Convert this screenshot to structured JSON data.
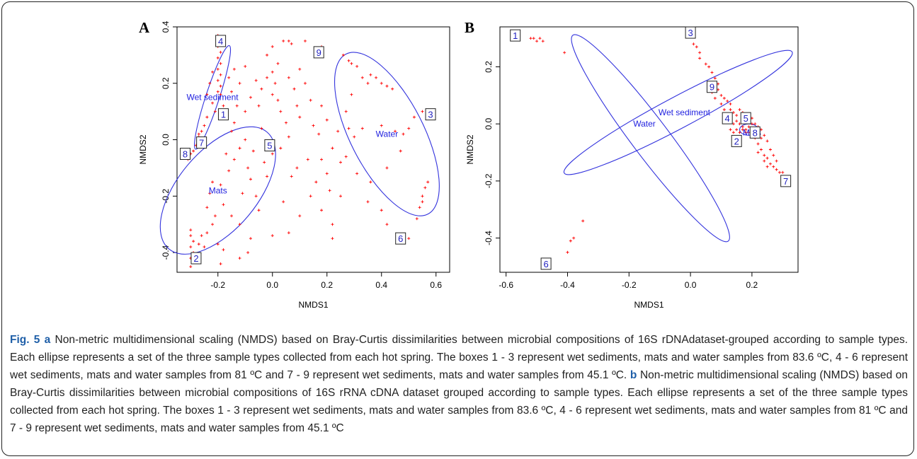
{
  "chart_data": [
    {
      "type": "scatter",
      "panel": "A",
      "xlabel": "NMDS1",
      "ylabel": "NMDS2",
      "xlim": [
        -0.35,
        0.65
      ],
      "ylim": [
        -0.47,
        0.4
      ],
      "xticks": [
        -0.2,
        0.0,
        0.2,
        0.4,
        0.6
      ],
      "xtick_labels": [
        "-0.2",
        "0.0",
        "0.2",
        "0.4",
        "0.6"
      ],
      "yticks": [
        -0.4,
        -0.2,
        0.0,
        0.2,
        0.4
      ],
      "ytick_labels": [
        "-0.4",
        "-0.2",
        "0.0",
        "0.2",
        "0.4"
      ],
      "point_color": "#ff0000",
      "ellipse_color": "#3333dd",
      "points": [
        [
          -0.2,
          0.37
        ],
        [
          -0.19,
          0.36
        ],
        [
          -0.2,
          0.33
        ],
        [
          -0.19,
          0.31
        ],
        [
          -0.2,
          0.29
        ],
        [
          -0.19,
          0.27
        ],
        [
          -0.2,
          0.25
        ],
        [
          -0.19,
          0.23
        ],
        [
          -0.2,
          0.21
        ],
        [
          -0.19,
          0.19
        ],
        [
          -0.2,
          0.17
        ],
        [
          -0.19,
          0.16
        ],
        [
          -0.22,
          0.24
        ],
        [
          -0.23,
          0.2
        ],
        [
          -0.24,
          0.16
        ],
        [
          -0.22,
          0.13
        ],
        [
          -0.21,
          0.1
        ],
        [
          -0.24,
          0.08
        ],
        [
          -0.25,
          0.05
        ],
        [
          -0.26,
          0.03
        ],
        [
          -0.27,
          0.02
        ],
        [
          -0.26,
          0.0
        ],
        [
          -0.28,
          -0.02
        ],
        [
          -0.27,
          0.01
        ],
        [
          -0.3,
          -0.05
        ],
        [
          -0.31,
          -0.07
        ],
        [
          -0.29,
          -0.04
        ],
        [
          -0.3,
          -0.32
        ],
        [
          -0.3,
          -0.34
        ],
        [
          -0.29,
          -0.36
        ],
        [
          -0.3,
          -0.38
        ],
        [
          -0.29,
          -0.4
        ],
        [
          -0.3,
          -0.42
        ],
        [
          -0.3,
          -0.45
        ],
        [
          -0.29,
          -0.43
        ],
        [
          -0.26,
          -0.34
        ],
        [
          -0.24,
          -0.33
        ],
        [
          -0.22,
          -0.3
        ],
        [
          -0.27,
          -0.37
        ],
        [
          -0.25,
          -0.38
        ],
        [
          -0.2,
          -0.37
        ],
        [
          -0.18,
          -0.39
        ],
        [
          -0.19,
          -0.44
        ],
        [
          -0.12,
          -0.42
        ],
        [
          -0.24,
          -0.24
        ],
        [
          -0.21,
          -0.27
        ],
        [
          -0.23,
          -0.19
        ],
        [
          -0.18,
          -0.23
        ],
        [
          -0.22,
          -0.15
        ],
        [
          -0.19,
          -0.16
        ],
        [
          -0.15,
          -0.27
        ],
        [
          -0.12,
          -0.3
        ],
        [
          -0.16,
          -0.11
        ],
        [
          -0.14,
          -0.07
        ],
        [
          -0.17,
          -0.05
        ],
        [
          -0.12,
          -0.03
        ],
        [
          -0.1,
          0.0
        ],
        [
          -0.15,
          0.03
        ],
        [
          -0.09,
          -0.1
        ],
        [
          -0.08,
          -0.14
        ],
        [
          -0.11,
          -0.19
        ],
        [
          -0.06,
          -0.2
        ],
        [
          -0.05,
          -0.25
        ],
        [
          -0.07,
          -0.04
        ],
        [
          -0.03,
          -0.08
        ],
        [
          -0.1,
          0.1
        ],
        [
          -0.13,
          0.12
        ],
        [
          -0.08,
          0.15
        ],
        [
          -0.04,
          0.18
        ],
        [
          -0.06,
          0.21
        ],
        [
          -0.02,
          0.22
        ],
        [
          0.01,
          0.2
        ],
        [
          -0.12,
          0.2
        ],
        [
          -0.15,
          0.17
        ],
        [
          -0.18,
          0.12
        ],
        [
          -0.14,
          0.06
        ],
        [
          -0.05,
          0.12
        ],
        [
          0.02,
          0.14
        ],
        [
          0.03,
          0.1
        ],
        [
          0.05,
          0.06
        ],
        [
          0.08,
          0.18
        ],
        [
          0.06,
          0.22
        ],
        [
          0.1,
          0.25
        ],
        [
          0.12,
          0.2
        ],
        [
          0.14,
          0.14
        ],
        [
          0.1,
          0.08
        ],
        [
          0.15,
          0.05
        ],
        [
          0.17,
          0.02
        ],
        [
          0.18,
          0.12
        ],
        [
          0.2,
          0.07
        ],
        [
          0.24,
          0.03
        ],
        [
          0.22,
          -0.03
        ],
        [
          0.25,
          -0.08
        ],
        [
          0.2,
          -0.12
        ],
        [
          0.16,
          -0.15
        ],
        [
          0.14,
          -0.2
        ],
        [
          0.18,
          -0.25
        ],
        [
          0.22,
          -0.3
        ],
        [
          0.13,
          -0.07
        ],
        [
          0.09,
          -0.1
        ],
        [
          0.07,
          -0.13
        ],
        [
          -0.02,
          0.3
        ],
        [
          0.0,
          0.33
        ],
        [
          0.04,
          0.35
        ],
        [
          0.06,
          0.35
        ],
        [
          0.07,
          0.34
        ],
        [
          0.12,
          0.35
        ],
        [
          0.18,
          0.33
        ],
        [
          -0.1,
          0.26
        ],
        [
          -0.14,
          0.25
        ],
        [
          -0.16,
          0.22
        ],
        [
          0.0,
          0.16
        ],
        [
          0.0,
          0.24
        ],
        [
          0.02,
          0.27
        ],
        [
          0.03,
          -0.03
        ],
        [
          0.0,
          -0.05
        ],
        [
          0.04,
          -0.22
        ],
        [
          0.06,
          -0.33
        ],
        [
          0.0,
          -0.34
        ],
        [
          0.1,
          -0.27
        ],
        [
          -0.08,
          -0.35
        ],
        [
          -0.09,
          -0.4
        ],
        [
          0.18,
          -0.07
        ],
        [
          0.21,
          -0.18
        ],
        [
          0.26,
          0.3
        ],
        [
          0.28,
          0.28
        ],
        [
          0.29,
          0.27
        ],
        [
          0.31,
          0.26
        ],
        [
          0.33,
          0.22
        ],
        [
          0.35,
          0.2
        ],
        [
          0.36,
          0.23
        ],
        [
          0.38,
          0.22
        ],
        [
          0.4,
          0.2
        ],
        [
          0.42,
          0.19
        ],
        [
          0.44,
          0.18
        ],
        [
          0.29,
          0.16
        ],
        [
          0.27,
          0.1
        ],
        [
          0.28,
          0.04
        ],
        [
          0.3,
          0.01
        ],
        [
          0.33,
          0.04
        ],
        [
          0.4,
          0.05
        ],
        [
          0.45,
          0.03
        ],
        [
          0.48,
          0.02
        ],
        [
          0.5,
          0.04
        ],
        [
          0.52,
          0.08
        ],
        [
          0.55,
          0.1
        ],
        [
          0.59,
          0.09
        ],
        [
          0.47,
          -0.04
        ],
        [
          0.42,
          -0.1
        ],
        [
          0.36,
          -0.15
        ],
        [
          0.31,
          -0.12
        ],
        [
          0.27,
          -0.06
        ],
        [
          0.25,
          -0.2
        ],
        [
          0.35,
          -0.22
        ],
        [
          0.4,
          -0.25
        ],
        [
          0.42,
          -0.3
        ],
        [
          0.5,
          -0.35
        ],
        [
          0.53,
          -0.28
        ],
        [
          0.54,
          -0.24
        ],
        [
          0.55,
          -0.2
        ],
        [
          0.56,
          -0.17
        ],
        [
          0.57,
          -0.15
        ],
        [
          0.55,
          -0.22
        ],
        [
          0.22,
          -0.35
        ],
        [
          -0.02,
          -0.13
        ],
        [
          -0.04,
          0.04
        ],
        [
          0.06,
          0.01
        ],
        [
          0.09,
          0.12
        ]
      ],
      "ellipses": [
        {
          "group": "Wet sediment",
          "cx": -0.22,
          "cy": 0.15,
          "rx": 0.2,
          "ry": 0.024,
          "angle_deg": 72
        },
        {
          "group": "Mats",
          "cx": -0.2,
          "cy": -0.18,
          "rx": 0.28,
          "ry": 0.14,
          "angle_deg": 50
        },
        {
          "group": "Water",
          "cx": 0.42,
          "cy": 0.02,
          "rx": 0.33,
          "ry": 0.13,
          "angle_deg": -63
        }
      ],
      "group_labels": [
        {
          "text": "Wet sediment",
          "x": -0.22,
          "y": 0.15
        },
        {
          "text": "Mats",
          "x": -0.2,
          "y": -0.18
        },
        {
          "text": "Water",
          "x": 0.42,
          "y": 0.02
        }
      ],
      "boxes": [
        {
          "label": "1",
          "x": -0.18,
          "y": 0.09
        },
        {
          "label": "2",
          "x": -0.28,
          "y": -0.42
        },
        {
          "label": "3",
          "x": 0.58,
          "y": 0.09
        },
        {
          "label": "4",
          "x": -0.19,
          "y": 0.35
        },
        {
          "label": "5",
          "x": -0.01,
          "y": -0.02
        },
        {
          "label": "6",
          "x": 0.47,
          "y": -0.35
        },
        {
          "label": "7",
          "x": -0.26,
          "y": -0.01
        },
        {
          "label": "8",
          "x": -0.32,
          "y": -0.05
        },
        {
          "label": "9",
          "x": 0.17,
          "y": 0.31
        }
      ]
    },
    {
      "type": "scatter",
      "panel": "B",
      "xlabel": "NMDS1",
      "ylabel": "NMDS2",
      "xlim": [
        -0.62,
        0.35
      ],
      "ylim": [
        -0.52,
        0.34
      ],
      "xticks": [
        -0.6,
        -0.4,
        -0.2,
        0.0,
        0.2
      ],
      "xtick_labels": [
        "-0.6",
        "-0.4",
        "-0.2",
        "0.0",
        "0.2"
      ],
      "yticks": [
        -0.4,
        -0.2,
        0.0,
        0.2
      ],
      "ytick_labels": [
        "-0.4",
        "-0.2",
        "0.0",
        "0.2"
      ],
      "point_color": "#ff0000",
      "ellipse_color": "#3333dd",
      "points": [
        [
          -0.52,
          0.3
        ],
        [
          -0.51,
          0.3
        ],
        [
          -0.5,
          0.29
        ],
        [
          -0.49,
          0.3
        ],
        [
          -0.48,
          0.29
        ],
        [
          -0.41,
          0.25
        ],
        [
          0.01,
          0.28
        ],
        [
          0.02,
          0.27
        ],
        [
          0.03,
          0.25
        ],
        [
          0.03,
          0.23
        ],
        [
          0.05,
          0.21
        ],
        [
          0.06,
          0.2
        ],
        [
          0.07,
          0.18
        ],
        [
          0.08,
          0.16
        ],
        [
          0.09,
          0.14
        ],
        [
          0.09,
          0.12
        ],
        [
          0.1,
          0.1
        ],
        [
          0.11,
          0.09
        ],
        [
          0.12,
          0.08
        ],
        [
          0.13,
          0.07
        ],
        [
          0.13,
          0.05
        ],
        [
          0.14,
          0.04
        ],
        [
          0.15,
          0.03
        ],
        [
          0.15,
          0.01
        ],
        [
          0.16,
          0.0
        ],
        [
          0.17,
          -0.01
        ],
        [
          0.18,
          -0.02
        ],
        [
          0.19,
          -0.03
        ],
        [
          0.2,
          -0.03
        ],
        [
          0.21,
          -0.05
        ],
        [
          0.22,
          -0.07
        ],
        [
          0.23,
          -0.09
        ],
        [
          0.24,
          -0.11
        ],
        [
          0.25,
          -0.12
        ],
        [
          0.26,
          -0.14
        ],
        [
          0.27,
          -0.15
        ],
        [
          0.28,
          -0.16
        ],
        [
          0.29,
          -0.17
        ],
        [
          0.3,
          -0.17
        ],
        [
          0.14,
          0.0
        ],
        [
          0.13,
          -0.02
        ],
        [
          0.14,
          -0.03
        ],
        [
          0.15,
          -0.02
        ],
        [
          0.16,
          -0.03
        ],
        [
          0.17,
          -0.02
        ],
        [
          0.18,
          -0.03
        ],
        [
          0.19,
          -0.01
        ],
        [
          0.2,
          0.0
        ],
        [
          0.21,
          -0.02
        ],
        [
          0.22,
          -0.03
        ],
        [
          0.12,
          0.03
        ],
        [
          0.11,
          0.05
        ],
        [
          0.1,
          0.07
        ],
        [
          0.08,
          0.09
        ],
        [
          0.07,
          0.11
        ],
        [
          0.16,
          0.05
        ],
        [
          0.17,
          0.04
        ],
        [
          0.18,
          0.02
        ],
        [
          0.19,
          0.03
        ],
        [
          0.2,
          0.02
        ],
        [
          0.21,
          0.0
        ],
        [
          0.22,
          -0.01
        ],
        [
          0.23,
          -0.02
        ],
        [
          0.24,
          -0.04
        ],
        [
          0.25,
          -0.06
        ],
        [
          0.23,
          -0.05
        ],
        [
          0.26,
          -0.09
        ],
        [
          0.27,
          -0.11
        ],
        [
          0.28,
          -0.13
        ],
        [
          0.22,
          -0.1
        ],
        [
          0.24,
          -0.13
        ],
        [
          0.25,
          -0.15
        ],
        [
          -0.35,
          -0.34
        ],
        [
          -0.38,
          -0.4
        ],
        [
          -0.39,
          -0.41
        ],
        [
          -0.4,
          -0.45
        ],
        [
          -0.47,
          -0.49
        ]
      ],
      "ellipses": [
        {
          "group": "Wet sediment",
          "cx": -0.04,
          "cy": 0.04,
          "rx": 0.42,
          "ry": 0.055,
          "angle_deg": 28
        },
        {
          "group": "Water",
          "cx": -0.13,
          "cy": -0.05,
          "rx": 0.42,
          "ry": 0.065,
          "angle_deg": -53
        },
        {
          "group": "Mats",
          "cx": 0.19,
          "cy": -0.02,
          "rx": 0.03,
          "ry": 0.02,
          "angle_deg": 0
        }
      ],
      "group_labels": [
        {
          "text": "Wet sediment",
          "x": -0.02,
          "y": 0.04
        },
        {
          "text": "Water",
          "x": -0.15,
          "y": 0.0
        },
        {
          "text": "Mats",
          "x": 0.2,
          "y": -0.03
        }
      ],
      "boxes": [
        {
          "label": "1",
          "x": -0.57,
          "y": 0.31
        },
        {
          "label": "2",
          "x": 0.15,
          "y": -0.06
        },
        {
          "label": "3",
          "x": 0.0,
          "y": 0.32
        },
        {
          "label": "4",
          "x": 0.12,
          "y": 0.02
        },
        {
          "label": "5",
          "x": 0.18,
          "y": 0.02
        },
        {
          "label": "6",
          "x": -0.47,
          "y": -0.49
        },
        {
          "label": "7",
          "x": 0.31,
          "y": -0.2
        },
        {
          "label": "8",
          "x": 0.21,
          "y": -0.03
        },
        {
          "label": "9",
          "x": 0.07,
          "y": 0.13
        }
      ]
    }
  ],
  "caption": {
    "fig_label": "Fig. 5",
    "a_label": "a",
    "a_text": " Non-metric multidimensional scaling (NMDS) based on Bray-Curtis dissimilarities between microbial compositions of 16S rDNAdataset-grouped according to sample types. Each ellipse represents a set of the three sample types collected from each hot spring. The boxes 1 - 3 represent wet sediments, mats and water samples from 83.6 ºC, 4 - 6 represent wet sediments, mats and water samples from 81 ºC and 7 - 9 represent wet sediments, mats and water samples from 45.1 ºC.",
    "b_label": "b",
    "b_text": " Non-metric multidimensional scaling (NMDS) based on Bray-Curtis dissimilarities between microbial compositions of 16S rRNA cDNA dataset grouped according to sample types. Each ellipse represents a set of the three sample types collected from each hot spring. The boxes 1 - 3 represent wet sediments, mats and water samples from 83.6 ºC, 4 - 6 represent wet sediments, mats and water samples from 81 ºC and 7 - 9 represent wet sediments, mats and water samples from 45.1 ºC"
  }
}
